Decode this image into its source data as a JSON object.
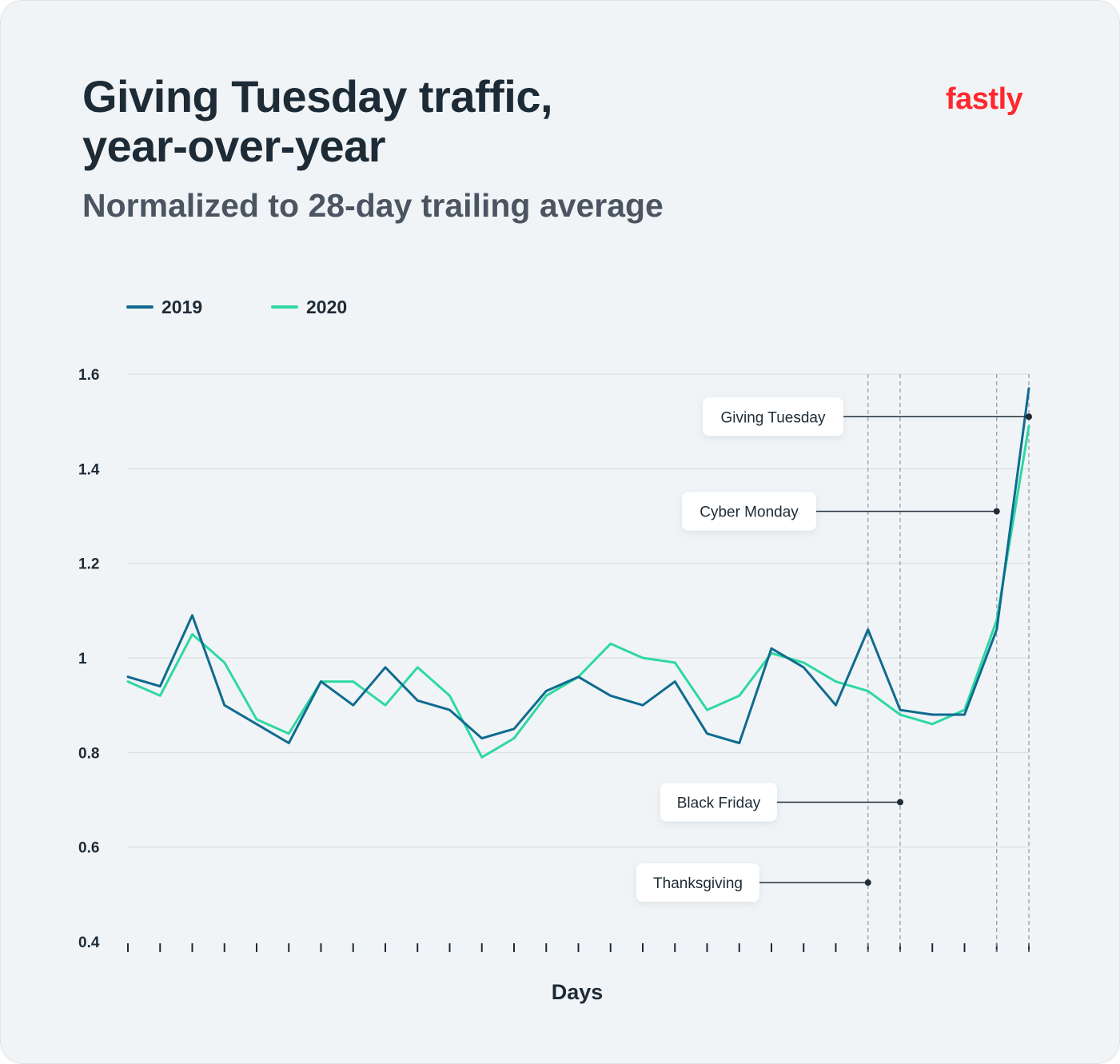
{
  "header": {
    "title_line1": "Giving Tuesday traffic,",
    "title_line2": "year-over-year",
    "subtitle": "Normalized to 28-day trailing average"
  },
  "logo": {
    "text": "fastly",
    "color": "#ff282d"
  },
  "colors": {
    "background": "#f1f4f7",
    "series_2019": "#0f6b8f",
    "series_2020": "#2ed8a3",
    "gridline": "#d5dbe1",
    "text": "#1d2b36"
  },
  "chart_data": {
    "type": "line",
    "title": "Giving Tuesday traffic, year-over-year",
    "subtitle": "Normalized to 28-day trailing average",
    "xlabel": "Days",
    "ylabel": "",
    "ylim": [
      0.4,
      1.6
    ],
    "yticks": [
      0.4,
      0.6,
      0.8,
      1,
      1.2,
      1.4,
      1.6
    ],
    "ytick_labels": [
      "0.4",
      "0.6",
      "0.8",
      "1",
      "1.2",
      "1.4",
      "1.6"
    ],
    "grid": true,
    "legend_position": "top-left",
    "x": [
      1,
      2,
      3,
      4,
      5,
      6,
      7,
      8,
      9,
      10,
      11,
      12,
      13,
      14,
      15,
      16,
      17,
      18,
      19,
      20,
      21,
      22,
      23,
      24,
      25,
      26,
      27,
      28,
      29
    ],
    "series": [
      {
        "name": "2019",
        "values": [
          0.96,
          0.94,
          1.09,
          0.9,
          0.86,
          0.82,
          0.95,
          0.9,
          0.98,
          0.91,
          0.89,
          0.83,
          0.85,
          0.93,
          0.96,
          0.92,
          0.9,
          0.95,
          0.84,
          0.82,
          1.02,
          0.98,
          0.9,
          1.06,
          0.89,
          0.88,
          0.88,
          1.06,
          1.57
        ]
      },
      {
        "name": "2020",
        "values": [
          0.95,
          0.92,
          1.05,
          0.99,
          0.87,
          0.84,
          0.95,
          0.95,
          0.9,
          0.98,
          0.92,
          0.79,
          0.83,
          0.92,
          0.96,
          1.03,
          1.0,
          0.99,
          0.89,
          0.92,
          1.01,
          0.99,
          0.95,
          0.93,
          0.88,
          0.86,
          0.89,
          1.08,
          1.49
        ]
      }
    ],
    "annotations": [
      {
        "label": "Giving Tuesday",
        "day": 29,
        "anchor_y": 1.51
      },
      {
        "label": "Cyber Monday",
        "day": 28,
        "anchor_y": 1.31
      },
      {
        "label": "Black Friday",
        "day": 25,
        "anchor_y": 0.695
      },
      {
        "label": "Thanksgiving",
        "day": 24,
        "anchor_y": 0.525
      }
    ]
  }
}
